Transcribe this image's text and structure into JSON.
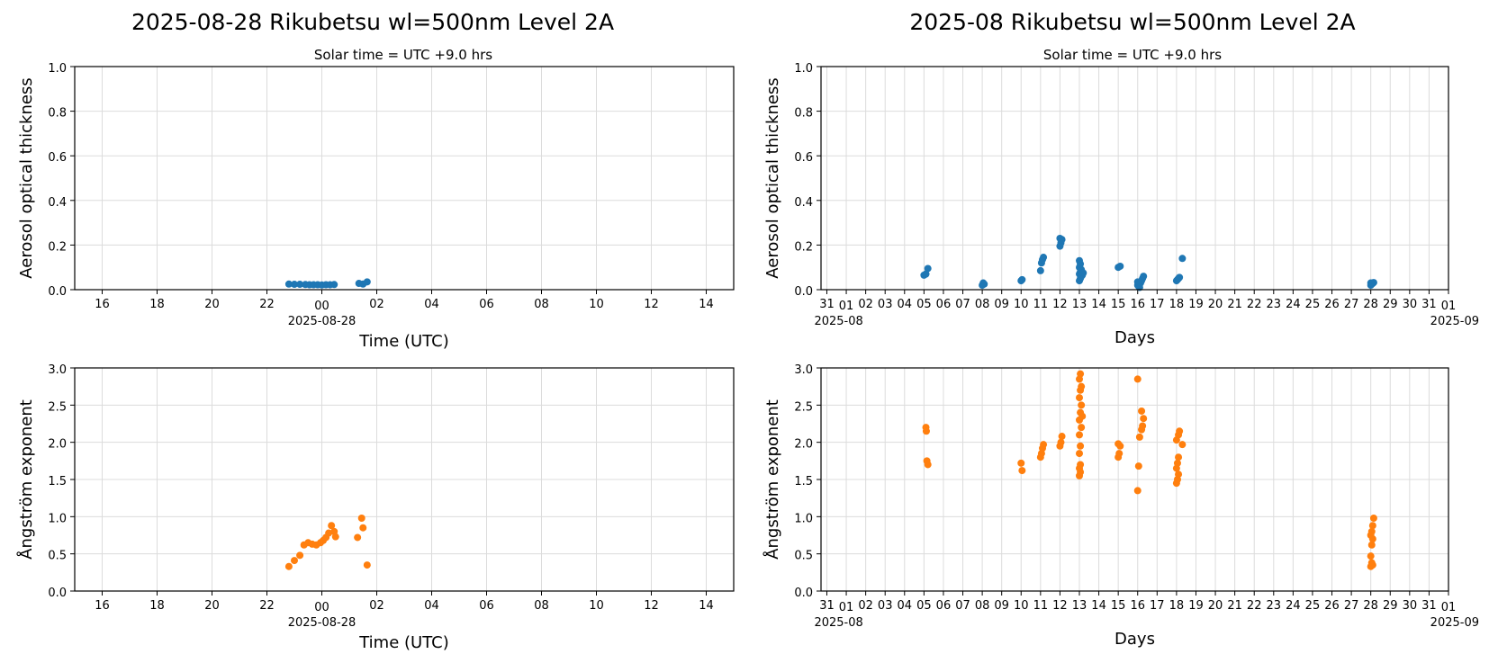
{
  "figure": {
    "left_title": "2025-08-28  Rikubetsu  wl=500nm  Level 2A",
    "right_title": "2025-08  Rikubetsu  wl=500nm  Level 2A",
    "subtitle": "Solar time = UTC +9.0 hrs"
  },
  "colors": {
    "aot": "#1f77b4",
    "angstrom": "#ff7f0e"
  },
  "chart_data": [
    {
      "id": "daily-aot",
      "type": "scatter",
      "xlabel": "Time (UTC)",
      "ylabel": "Aerosol optical thickness",
      "xlim": [
        -9,
        15
      ],
      "ylim": [
        0,
        1.0
      ],
      "x_ticks": [
        "16",
        "18",
        "20",
        "22",
        "00",
        "02",
        "04",
        "06",
        "08",
        "10",
        "12",
        "14"
      ],
      "x_tick_values": [
        -8,
        -6,
        -4,
        -2,
        0,
        2,
        4,
        6,
        8,
        10,
        12,
        14
      ],
      "x_sublabel": "2025-08-28",
      "y_ticks": [
        "0.0",
        "0.2",
        "0.4",
        "0.6",
        "0.8",
        "1.0"
      ],
      "grid": true,
      "series": [
        {
          "points": [
            [
              -1.2,
              0.025
            ],
            [
              -1.0,
              0.024
            ],
            [
              -0.8,
              0.024
            ],
            [
              -0.6,
              0.023
            ],
            [
              -0.45,
              0.022
            ],
            [
              -0.3,
              0.022
            ],
            [
              -0.15,
              0.022
            ],
            [
              0.0,
              0.021
            ],
            [
              0.15,
              0.022
            ],
            [
              0.3,
              0.022
            ],
            [
              0.45,
              0.023
            ],
            [
              1.35,
              0.028
            ],
            [
              1.5,
              0.025
            ],
            [
              1.65,
              0.035
            ]
          ]
        }
      ]
    },
    {
      "id": "daily-angstrom",
      "type": "scatter",
      "xlabel": "Time (UTC)",
      "ylabel": "Ångström exponent",
      "xlim": [
        -9,
        15
      ],
      "ylim": [
        0,
        3.0
      ],
      "x_ticks": [
        "16",
        "18",
        "20",
        "22",
        "00",
        "02",
        "04",
        "06",
        "08",
        "10",
        "12",
        "14"
      ],
      "x_tick_values": [
        -8,
        -6,
        -4,
        -2,
        0,
        2,
        4,
        6,
        8,
        10,
        12,
        14
      ],
      "x_sublabel": "2025-08-28",
      "y_ticks": [
        "0.0",
        "0.5",
        "1.0",
        "1.5",
        "2.0",
        "2.5",
        "3.0"
      ],
      "grid": true,
      "series": [
        {
          "points": [
            [
              -1.2,
              0.33
            ],
            [
              -1.0,
              0.41
            ],
            [
              -0.8,
              0.48
            ],
            [
              -0.65,
              0.62
            ],
            [
              -0.5,
              0.65
            ],
            [
              -0.35,
              0.63
            ],
            [
              -0.2,
              0.62
            ],
            [
              -0.05,
              0.65
            ],
            [
              0.05,
              0.68
            ],
            [
              0.15,
              0.72
            ],
            [
              0.25,
              0.78
            ],
            [
              0.35,
              0.88
            ],
            [
              0.45,
              0.8
            ],
            [
              0.5,
              0.73
            ],
            [
              1.3,
              0.72
            ],
            [
              1.45,
              0.98
            ],
            [
              1.5,
              0.85
            ],
            [
              1.65,
              0.35
            ]
          ]
        }
      ]
    },
    {
      "id": "monthly-aot",
      "type": "scatter",
      "xlabel": "Days",
      "ylabel": "Aerosol optical thickness",
      "xlim": [
        -0.3,
        32
      ],
      "ylim": [
        0,
        1.0
      ],
      "x_ticks": [
        "31",
        "01",
        "02",
        "03",
        "04",
        "05",
        "06",
        "07",
        "08",
        "09",
        "10",
        "11",
        "12",
        "13",
        "14",
        "15",
        "16",
        "17",
        "18",
        "19",
        "20",
        "21",
        "22",
        "23",
        "24",
        "25",
        "26",
        "27",
        "28",
        "29",
        "30",
        "31",
        "01"
      ],
      "x_sublabel_left": "2025-08",
      "x_sublabel_right": "2025-09",
      "y_ticks": [
        "0.0",
        "0.2",
        "0.4",
        "0.6",
        "0.8",
        "1.0"
      ],
      "grid": true,
      "series": [
        {
          "points": [
            [
              5.0,
              0.065
            ],
            [
              5.1,
              0.07
            ],
            [
              5.2,
              0.095
            ],
            [
              8.0,
              0.02
            ],
            [
              8.1,
              0.025
            ],
            [
              8.05,
              0.03
            ],
            [
              10.0,
              0.04
            ],
            [
              10.05,
              0.045
            ],
            [
              11.0,
              0.085
            ],
            [
              11.05,
              0.12
            ],
            [
              11.1,
              0.135
            ],
            [
              11.15,
              0.145
            ],
            [
              12.0,
              0.195
            ],
            [
              12.05,
              0.21
            ],
            [
              12.1,
              0.225
            ],
            [
              12.0,
              0.23
            ],
            [
              13.0,
              0.04
            ],
            [
              13.05,
              0.05
            ],
            [
              13.1,
              0.06
            ],
            [
              13.0,
              0.07
            ],
            [
              13.05,
              0.08
            ],
            [
              13.1,
              0.09
            ],
            [
              13.0,
              0.1
            ],
            [
              13.05,
              0.115
            ],
            [
              13.0,
              0.13
            ],
            [
              13.15,
              0.065
            ],
            [
              13.2,
              0.075
            ],
            [
              15.0,
              0.1
            ],
            [
              15.1,
              0.105
            ],
            [
              16.0,
              0.02
            ],
            [
              16.05,
              0.015
            ],
            [
              16.1,
              0.025
            ],
            [
              16.15,
              0.03
            ],
            [
              16.2,
              0.04
            ],
            [
              16.25,
              0.05
            ],
            [
              16.3,
              0.06
            ],
            [
              16.0,
              0.035
            ],
            [
              16.1,
              0.01
            ],
            [
              18.0,
              0.04
            ],
            [
              18.05,
              0.045
            ],
            [
              18.1,
              0.05
            ],
            [
              18.15,
              0.055
            ],
            [
              18.3,
              0.14
            ],
            [
              28.0,
              0.02
            ],
            [
              28.05,
              0.025
            ],
            [
              28.1,
              0.028
            ],
            [
              28.15,
              0.032
            ],
            [
              28.0,
              0.03
            ]
          ]
        }
      ]
    },
    {
      "id": "monthly-angstrom",
      "type": "scatter",
      "xlabel": "Days",
      "ylabel": "Ångström exponent",
      "xlim": [
        -0.3,
        32
      ],
      "ylim": [
        0,
        3.0
      ],
      "x_ticks": [
        "31",
        "01",
        "02",
        "03",
        "04",
        "05",
        "06",
        "07",
        "08",
        "09",
        "10",
        "11",
        "12",
        "13",
        "14",
        "15",
        "16",
        "17",
        "18",
        "19",
        "20",
        "21",
        "22",
        "23",
        "24",
        "25",
        "26",
        "27",
        "28",
        "29",
        "30",
        "31",
        "01"
      ],
      "x_sublabel_left": "2025-08",
      "x_sublabel_right": "2025-09",
      "y_ticks": [
        "0.0",
        "0.5",
        "1.0",
        "1.5",
        "2.0",
        "2.5",
        "3.0"
      ],
      "grid": true,
      "series": [
        {
          "points": [
            [
              5.1,
              2.2
            ],
            [
              5.12,
              2.15
            ],
            [
              5.15,
              1.75
            ],
            [
              5.2,
              1.7
            ],
            [
              10.0,
              1.72
            ],
            [
              10.05,
              1.62
            ],
            [
              11.0,
              1.8
            ],
            [
              11.05,
              1.85
            ],
            [
              11.1,
              1.92
            ],
            [
              11.15,
              1.97
            ],
            [
              12.0,
              1.95
            ],
            [
              12.05,
              2.0
            ],
            [
              12.1,
              2.08
            ],
            [
              13.0,
              1.55
            ],
            [
              13.05,
              1.6
            ],
            [
              13.0,
              1.65
            ],
            [
              13.05,
              1.7
            ],
            [
              13.0,
              1.85
            ],
            [
              13.05,
              1.95
            ],
            [
              13.0,
              2.1
            ],
            [
              13.1,
              2.2
            ],
            [
              13.0,
              2.3
            ],
            [
              13.05,
              2.4
            ],
            [
              13.1,
              2.5
            ],
            [
              13.0,
              2.6
            ],
            [
              13.05,
              2.7
            ],
            [
              13.15,
              2.35
            ],
            [
              13.0,
              2.85
            ],
            [
              13.05,
              2.92
            ],
            [
              13.1,
              2.75
            ],
            [
              15.0,
              1.8
            ],
            [
              15.05,
              1.85
            ],
            [
              15.1,
              1.95
            ],
            [
              15.0,
              1.98
            ],
            [
              16.0,
              1.35
            ],
            [
              16.05,
              1.68
            ],
            [
              16.1,
              2.07
            ],
            [
              16.2,
              2.17
            ],
            [
              16.25,
              2.22
            ],
            [
              16.3,
              2.32
            ],
            [
              16.2,
              2.42
            ],
            [
              16.0,
              2.85
            ],
            [
              18.0,
              1.45
            ],
            [
              18.05,
              1.5
            ],
            [
              18.1,
              1.57
            ],
            [
              18.0,
              1.65
            ],
            [
              18.05,
              1.72
            ],
            [
              18.1,
              1.8
            ],
            [
              18.0,
              2.03
            ],
            [
              18.1,
              2.1
            ],
            [
              18.15,
              2.15
            ],
            [
              18.3,
              1.97
            ],
            [
              28.0,
              0.33
            ],
            [
              28.05,
              0.38
            ],
            [
              28.1,
              0.35
            ],
            [
              28.0,
              0.47
            ],
            [
              28.05,
              0.62
            ],
            [
              28.1,
              0.7
            ],
            [
              28.0,
              0.75
            ],
            [
              28.05,
              0.8
            ],
            [
              28.1,
              0.88
            ],
            [
              28.15,
              0.98
            ]
          ]
        }
      ]
    }
  ]
}
